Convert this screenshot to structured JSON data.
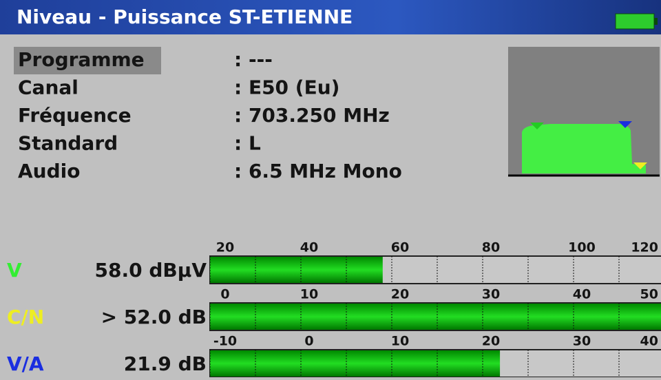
{
  "header": {
    "title": "Niveau - Puissance ST-ETIENNE"
  },
  "info": [
    {
      "label": "Programme",
      "value": ": ---"
    },
    {
      "label": "Canal",
      "value": ": E50  (Eu)"
    },
    {
      "label": "Fréquence",
      "value": ": 703.250 MHz"
    },
    {
      "label": "Standard",
      "value": ": L"
    },
    {
      "label": "Audio",
      "value": ": 6.5 MHz Mono"
    }
  ],
  "meters": [
    {
      "label": "V",
      "color": "#33ee33",
      "reading": "58.0 dBµV",
      "value": 58.0,
      "xlim": [
        20,
        120
      ],
      "xticks": [
        20,
        40,
        60,
        80,
        100,
        120
      ]
    },
    {
      "label": "C/N",
      "color": "#eeee22",
      "reading": "> 52.0 dB",
      "value": 52.0,
      "xlim": [
        0,
        50
      ],
      "xticks": [
        0,
        10,
        20,
        30,
        40,
        50
      ]
    },
    {
      "label": "V/A",
      "color": "#1a2ee0",
      "reading": "21.9 dB",
      "value": 21.9,
      "xlim": [
        -10,
        40
      ],
      "xticks": [
        -10,
        0,
        10,
        20,
        30,
        40
      ]
    }
  ]
}
